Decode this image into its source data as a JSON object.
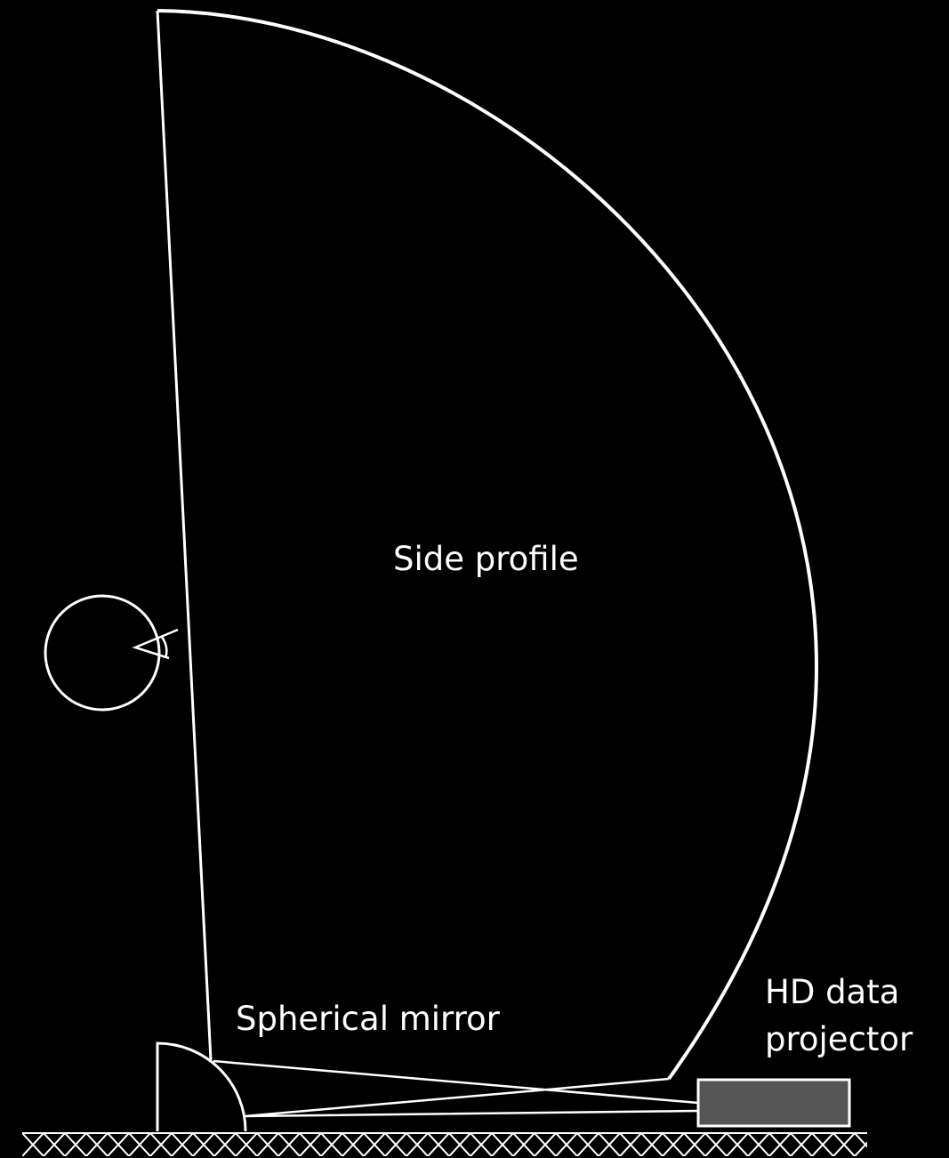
{
  "labels": {
    "side_profile": "Side profile",
    "mirror": "Spherical mirror",
    "projector": [
      "HD data",
      "projector"
    ]
  }
}
